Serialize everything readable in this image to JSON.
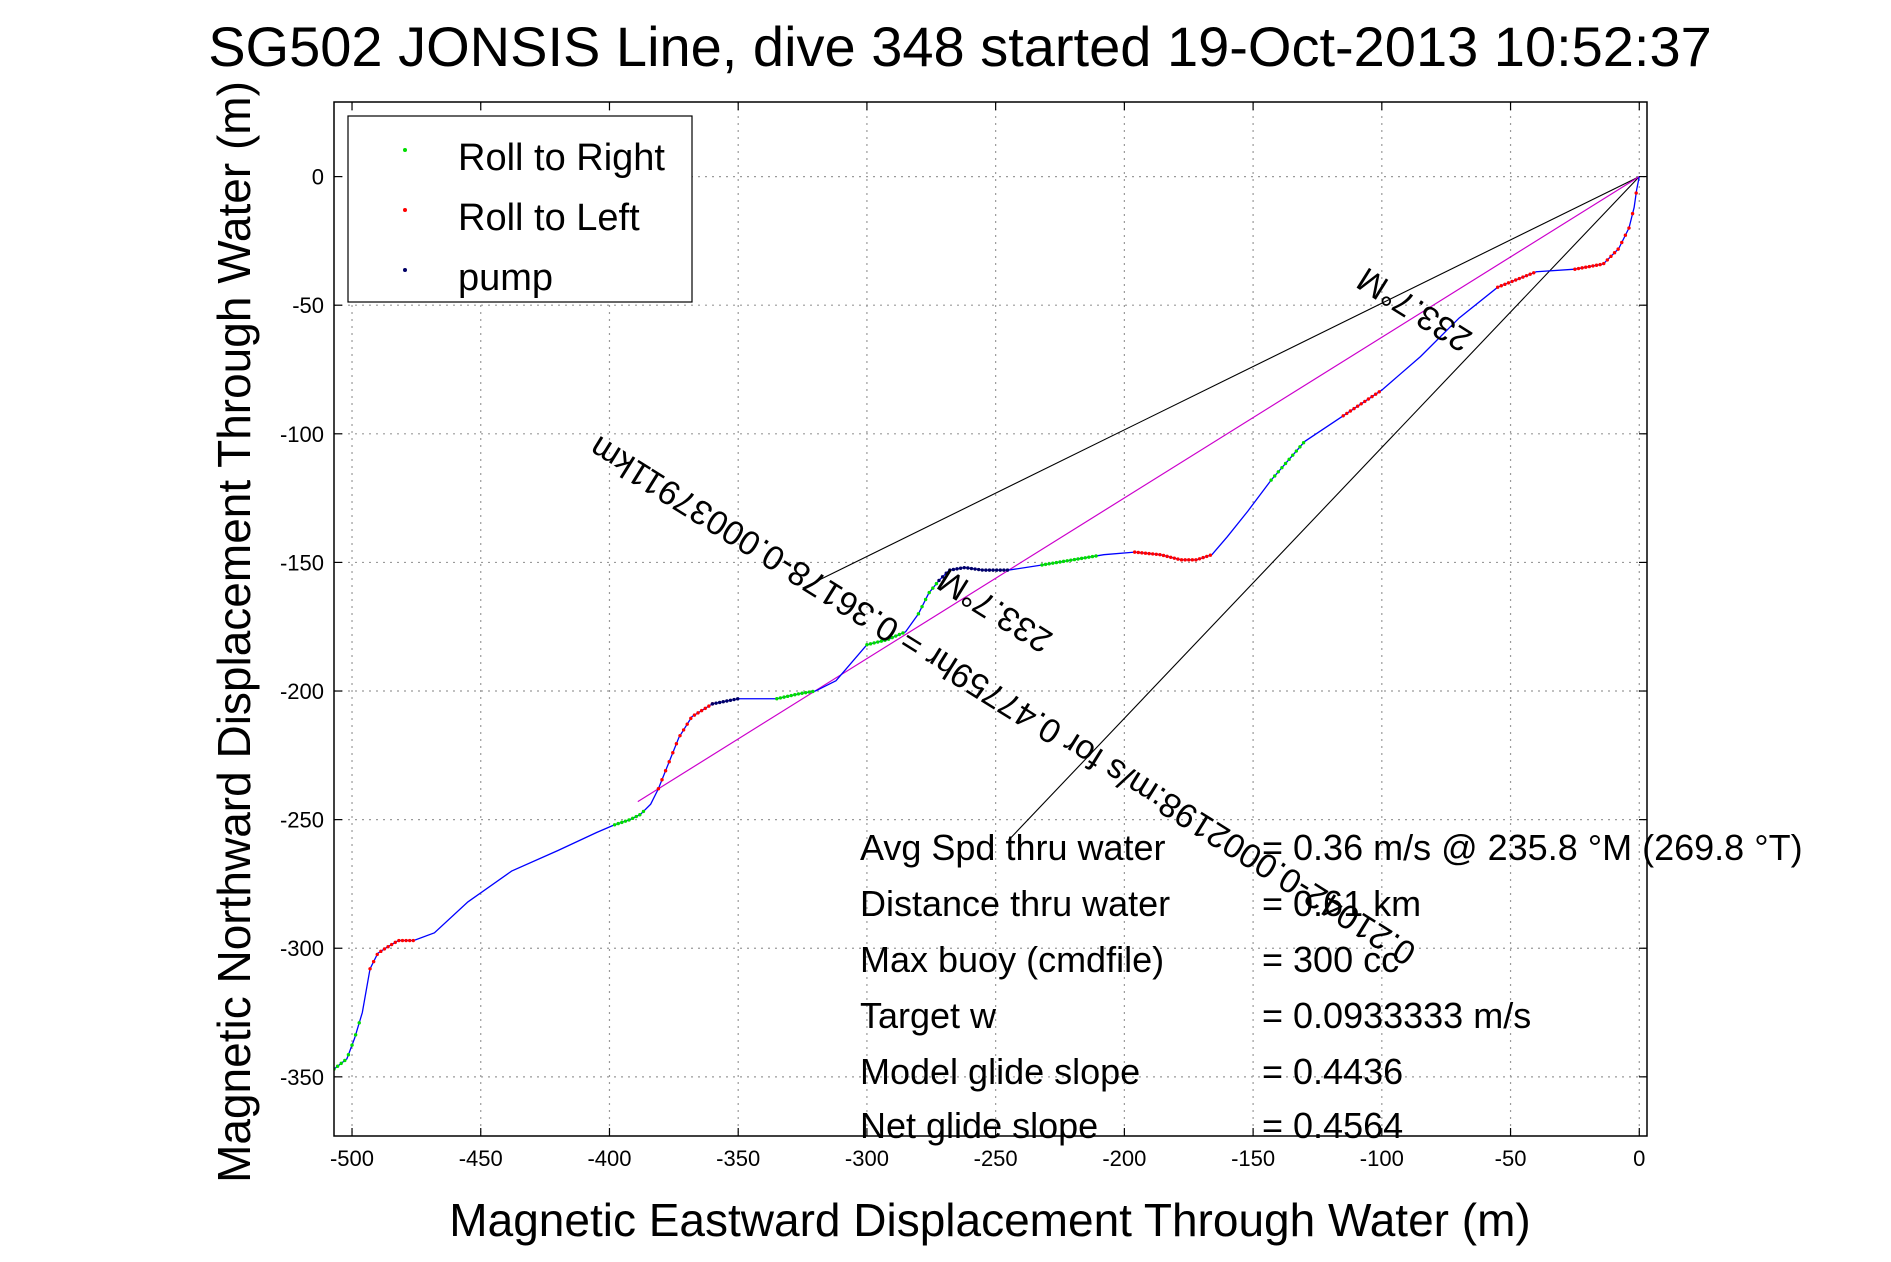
{
  "chart_data": {
    "type": "line",
    "title": "SG502 JONSIS Line, dive 348 started 19-Oct-2013 10:52:37",
    "xlabel": "Magnetic Eastward Displacement Through Water (m)",
    "ylabel": "Magnetic Northward Displacement Through Water (m)",
    "xlim": [
      -507,
      3
    ],
    "ylim": [
      -373,
      29
    ],
    "xticks": [
      -500,
      -450,
      -400,
      -350,
      -300,
      -250,
      -200,
      -150,
      -100,
      -50,
      0
    ],
    "yticks": [
      0,
      -50,
      -100,
      -150,
      -200,
      -250,
      -300,
      -350
    ],
    "grid": true,
    "legend": {
      "placement": "top-left",
      "entries": [
        {
          "label": "Roll to Right",
          "color": "#00dd00"
        },
        {
          "label": "Roll to Left",
          "color": "#ff0000"
        },
        {
          "label": "pump",
          "color": "#000066"
        }
      ]
    },
    "track": {
      "color": "#0000ff",
      "x": [
        0,
        -1,
        -2,
        -4,
        -8,
        -14,
        -25,
        -40,
        -55,
        -70,
        -85,
        -100,
        -115,
        -130,
        -143,
        -152,
        -160,
        -166,
        -172,
        -178,
        -186,
        -196,
        -208,
        -220,
        -232,
        -245,
        -255,
        -262,
        -268,
        -272,
        -276,
        -280,
        -285,
        -292,
        -300,
        -306,
        -312,
        -320,
        -326,
        -335,
        -350,
        -360,
        -368,
        -373,
        -377,
        -381,
        -384,
        -388,
        -392,
        -398,
        -405,
        -420,
        -438,
        -455,
        -468,
        -476,
        -482,
        -487,
        -490,
        -493,
        -496,
        -499,
        -502,
        -507
      ],
      "y": [
        0,
        -5,
        -12,
        -20,
        -28,
        -34,
        -36,
        -37,
        -43,
        -55,
        -70,
        -83,
        -93,
        -103,
        -118,
        -130,
        -140,
        -147,
        -149,
        -149,
        -147,
        -146,
        -147,
        -149,
        -151,
        -153,
        -153,
        -152,
        -153,
        -157,
        -162,
        -170,
        -177,
        -180,
        -182,
        -189,
        -196,
        -200,
        -201,
        -203,
        -203,
        -205,
        -210,
        -218,
        -228,
        -238,
        -244,
        -248,
        -250,
        -252,
        -255,
        -262,
        -270,
        -282,
        -294,
        -297,
        -297,
        -300,
        -302,
        -308,
        -325,
        -335,
        -343,
        -347
      ]
    },
    "roll_right_segments": [
      {
        "x0": -507,
        "x1": -496
      },
      {
        "x0": -398,
        "x1": -386
      },
      {
        "x0": -335,
        "x1": -320
      },
      {
        "x0": -300,
        "x1": -285
      },
      {
        "x0": -280,
        "x1": -272
      },
      {
        "x0": -232,
        "x1": -210
      },
      {
        "x0": -143,
        "x1": -130
      }
    ],
    "roll_left_segments": [
      {
        "x0": -493,
        "x1": -476
      },
      {
        "x0": -381,
        "x1": -360
      },
      {
        "x0": -196,
        "x1": -166
      },
      {
        "x0": -115,
        "x1": -100
      },
      {
        "x0": -55,
        "x1": -40
      },
      {
        "x0": -25,
        "x1": 0
      }
    ],
    "pump_segments": [
      {
        "x0": -360,
        "x1": -350
      },
      {
        "x0": -272,
        "x1": -245
      }
    ],
    "net_line": {
      "color": "#cc00cc",
      "x": [
        0,
        -389
      ],
      "y": [
        0,
        -243
      ]
    },
    "envelope_lines": [
      {
        "x": [
          0,
          -325
        ],
        "y": [
          0,
          -160
        ]
      },
      {
        "x": [
          0,
          -245
        ],
        "y": [
          0,
          -258
        ]
      }
    ],
    "annotations": [
      {
        "text": "233.7°M",
        "x": -85,
        "y": -48,
        "angle_deg": 212
      },
      {
        "text": "0.21042-0.0002198:m/s for 0.47759hr = 0.36178-0.00037911km",
        "x": -245,
        "y": -200,
        "angle_deg": 212
      },
      {
        "text": "233.7°M",
        "x": -248,
        "y": -165,
        "angle_deg": 212
      }
    ],
    "stats": [
      {
        "label": "Avg Spd thru water",
        "value": "=  0.36 m/s @ 235.8 °M (269.8 °T)"
      },
      {
        "label": "Distance thru water",
        "value": "=  0.61 km"
      },
      {
        "label": "Max buoy (cmdfile)",
        "value": "= 300 cc"
      },
      {
        "label": "Target w",
        "value": "= 0.0933333 m/s"
      },
      {
        "label": "Model glide slope",
        "value": "= 0.4436"
      },
      {
        "label": "Net glide slope",
        "value": "= 0.4564"
      }
    ]
  }
}
